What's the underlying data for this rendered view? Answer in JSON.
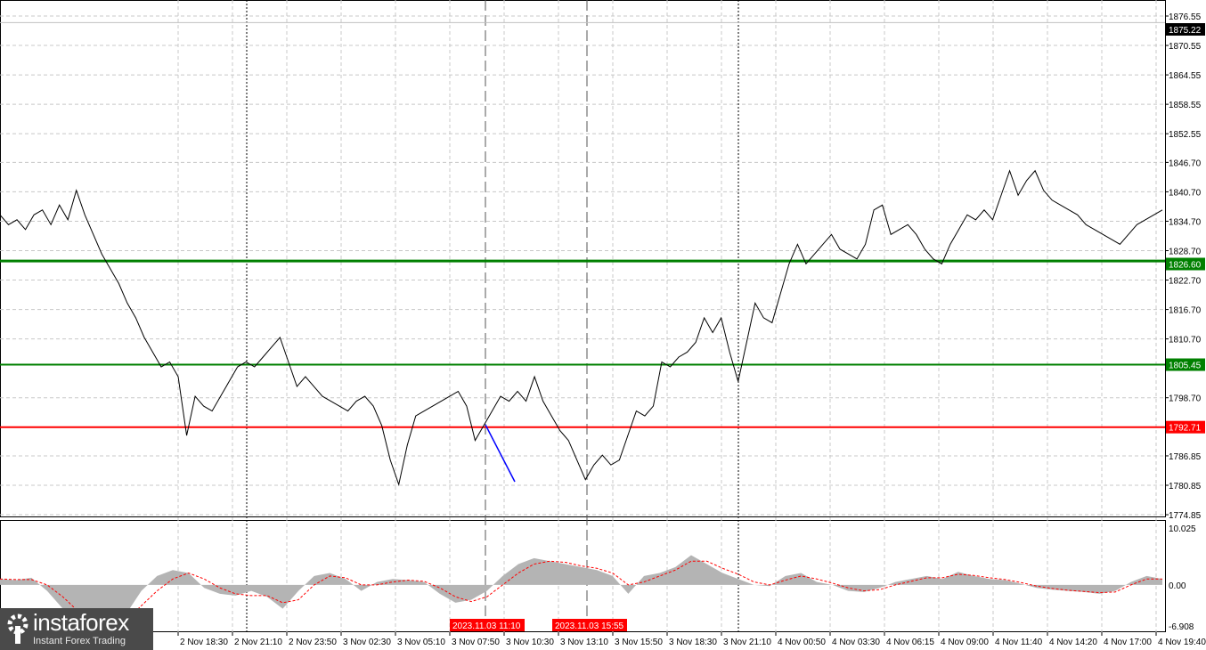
{
  "chart_data": {
    "type": "line",
    "symbol_current_price": "1875.22",
    "price_axis": {
      "ylim": [
        1774.85,
        1876.55
      ],
      "ticks": [
        "1876.55",
        "1870.55",
        "1864.55",
        "1858.55",
        "1852.55",
        "1846.70",
        "1840.70",
        "1834.70",
        "1828.70",
        "1822.70",
        "1816.70",
        "1810.70",
        "1798.70",
        "1786.85",
        "1780.85",
        "1774.85"
      ]
    },
    "price_values": [
      1836,
      1834,
      1835,
      1833,
      1836,
      1837,
      1834,
      1838,
      1835,
      1841,
      1836,
      1832,
      1828,
      1825,
      1822,
      1818,
      1815,
      1811,
      1808,
      1805,
      1806,
      1803,
      1791,
      1799,
      1797,
      1796,
      1799,
      1802,
      1805,
      1806,
      1805,
      1807,
      1809,
      1811,
      1806,
      1801,
      1803,
      1801,
      1799,
      1798,
      1797,
      1796,
      1798,
      1799,
      1797,
      1793,
      1786,
      1781,
      1789,
      1795,
      1796,
      1797,
      1798,
      1799,
      1800,
      1797,
      1790,
      1793,
      1796,
      1799,
      1798,
      1800,
      1798,
      1803,
      1798,
      1795,
      1792,
      1790,
      1786,
      1782,
      1785,
      1787,
      1785,
      1786,
      1791,
      1796,
      1795,
      1797,
      1806,
      1805,
      1807,
      1808,
      1810,
      1815,
      1812,
      1815,
      1808,
      1802,
      1810,
      1818,
      1815,
      1814,
      1820,
      1826,
      1830,
      1826,
      1828,
      1830,
      1832,
      1829,
      1828,
      1827,
      1830,
      1837,
      1838,
      1832,
      1833,
      1834,
      1832,
      1829,
      1827,
      1826,
      1830,
      1833,
      1836,
      1835,
      1837,
      1835,
      1840,
      1845,
      1840,
      1843,
      1845,
      1841,
      1839,
      1838,
      1837,
      1836,
      1834,
      1833,
      1832,
      1831,
      1830,
      1832,
      1834,
      1835,
      1836,
      1837
    ],
    "levels": [
      {
        "value": 1826.6,
        "label": "1826.60",
        "color": "#008000"
      },
      {
        "value": 1805.45,
        "label": "1805.45",
        "color": "#008000"
      },
      {
        "value": 1792.71,
        "label": "1792.71",
        "color": "#ff0000"
      }
    ],
    "x_ticks": [
      "2 Nov 18:30",
      "2 Nov 21:10",
      "2 Nov 23:50",
      "3 Nov 02:30",
      "3 Nov 05:10",
      "3 Nov 07:50",
      "3 Nov 10:30",
      "3 Nov 13:10",
      "3 Nov 15:50",
      "3 Nov 18:30",
      "3 Nov 21:10",
      "4 Nov 00:50",
      "4 Nov 03:30",
      "4 Nov 06:15",
      "4 Nov 09:00",
      "4 Nov 11:40",
      "4 Nov 14:20",
      "4 Nov 17:00",
      "4 Nov 19:40"
    ],
    "markers": [
      {
        "label": "2023.11.03 11:10",
        "color": "#ff0000"
      },
      {
        "label": "2023.11.03 15:55",
        "color": "#ff0000"
      }
    ],
    "indicator": {
      "ylim": [
        -6.908,
        10.025
      ],
      "ticks": [
        "10.025",
        "0.00",
        "-6.908"
      ],
      "histogram": [
        1,
        0.8,
        1.2,
        -1,
        -4,
        -6.9,
        -6.9,
        -6.9,
        -5,
        -1,
        1.5,
        2.5,
        2,
        -0.5,
        -1.5,
        -1.8,
        -1,
        -2,
        -4,
        -1,
        1.5,
        2,
        1,
        -1,
        0.5,
        1,
        0.8,
        0.5,
        -1.5,
        -3,
        -2.5,
        -1,
        1.5,
        3.5,
        4.5,
        4,
        3.5,
        3,
        2.5,
        1.5,
        -1.5,
        1.5,
        2,
        3,
        5,
        3.5,
        2,
        1,
        0,
        -0.2,
        1.5,
        2,
        0.5,
        0,
        -1,
        -1.2,
        -0.5,
        0.5,
        1,
        1.5,
        1,
        2.2,
        1.5,
        1,
        0.8,
        0.2,
        -0.5,
        -0.8,
        -1,
        -1.2,
        -1.5,
        -1,
        0.5,
        1.5,
        1
      ],
      "signal": [
        1,
        0.9,
        0.9,
        0,
        -2,
        -4.5,
        -6,
        -6.5,
        -6,
        -3.5,
        -1,
        1,
        2,
        1,
        -0.5,
        -1.5,
        -1.8,
        -1.8,
        -3,
        -2.5,
        0,
        1.5,
        1.2,
        0,
        0,
        0.5,
        0.8,
        0.6,
        -0.5,
        -2,
        -2.8,
        -2,
        0,
        2,
        3.5,
        4,
        3.8,
        3.2,
        2.8,
        2,
        0,
        0.5,
        1.5,
        2.5,
        4,
        4,
        2.8,
        1.8,
        0.5,
        0,
        0.8,
        1.5,
        1,
        0.3,
        -0.5,
        -1,
        -0.8,
        0,
        0.6,
        1.2,
        1.2,
        1.8,
        1.6,
        1.2,
        0.9,
        0.4,
        -0.2,
        -0.6,
        -0.9,
        -1.1,
        -1.3,
        -1.2,
        0,
        1,
        1
      ]
    }
  },
  "logo": {
    "name": "instaforex",
    "tagline": "Instant Forex Trading"
  },
  "colors": {
    "price": "#000000",
    "grid": "#c0c0c0",
    "histogram": "#b4b4b4",
    "signal": "#ff0000",
    "trend": "#0000ff"
  }
}
